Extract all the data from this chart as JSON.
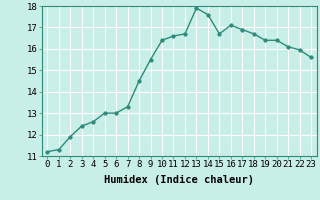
{
  "x": [
    0,
    1,
    2,
    3,
    4,
    5,
    6,
    7,
    8,
    9,
    10,
    11,
    12,
    13,
    14,
    15,
    16,
    17,
    18,
    19,
    20,
    21,
    22,
    23
  ],
  "y": [
    11.2,
    11.3,
    11.9,
    12.4,
    12.6,
    13.0,
    13.0,
    13.3,
    14.5,
    15.5,
    16.4,
    16.6,
    16.7,
    17.9,
    17.6,
    16.7,
    17.1,
    16.9,
    16.7,
    16.4,
    16.4,
    16.1,
    15.95,
    15.6
  ],
  "xlim": [
    -0.5,
    23.5
  ],
  "ylim": [
    11,
    18
  ],
  "yticks": [
    11,
    12,
    13,
    14,
    15,
    16,
    17,
    18
  ],
  "xticks": [
    0,
    1,
    2,
    3,
    4,
    5,
    6,
    7,
    8,
    9,
    10,
    11,
    12,
    13,
    14,
    15,
    16,
    17,
    18,
    19,
    20,
    21,
    22,
    23
  ],
  "xlabel": "Humidex (Indice chaleur)",
  "line_color": "#2e8b7a",
  "marker": "o",
  "marker_size": 2.5,
  "bg_color": "#c8eee8",
  "grid_color": "#ffffff",
  "tick_label_fontsize": 6.5,
  "xlabel_fontsize": 7.5
}
